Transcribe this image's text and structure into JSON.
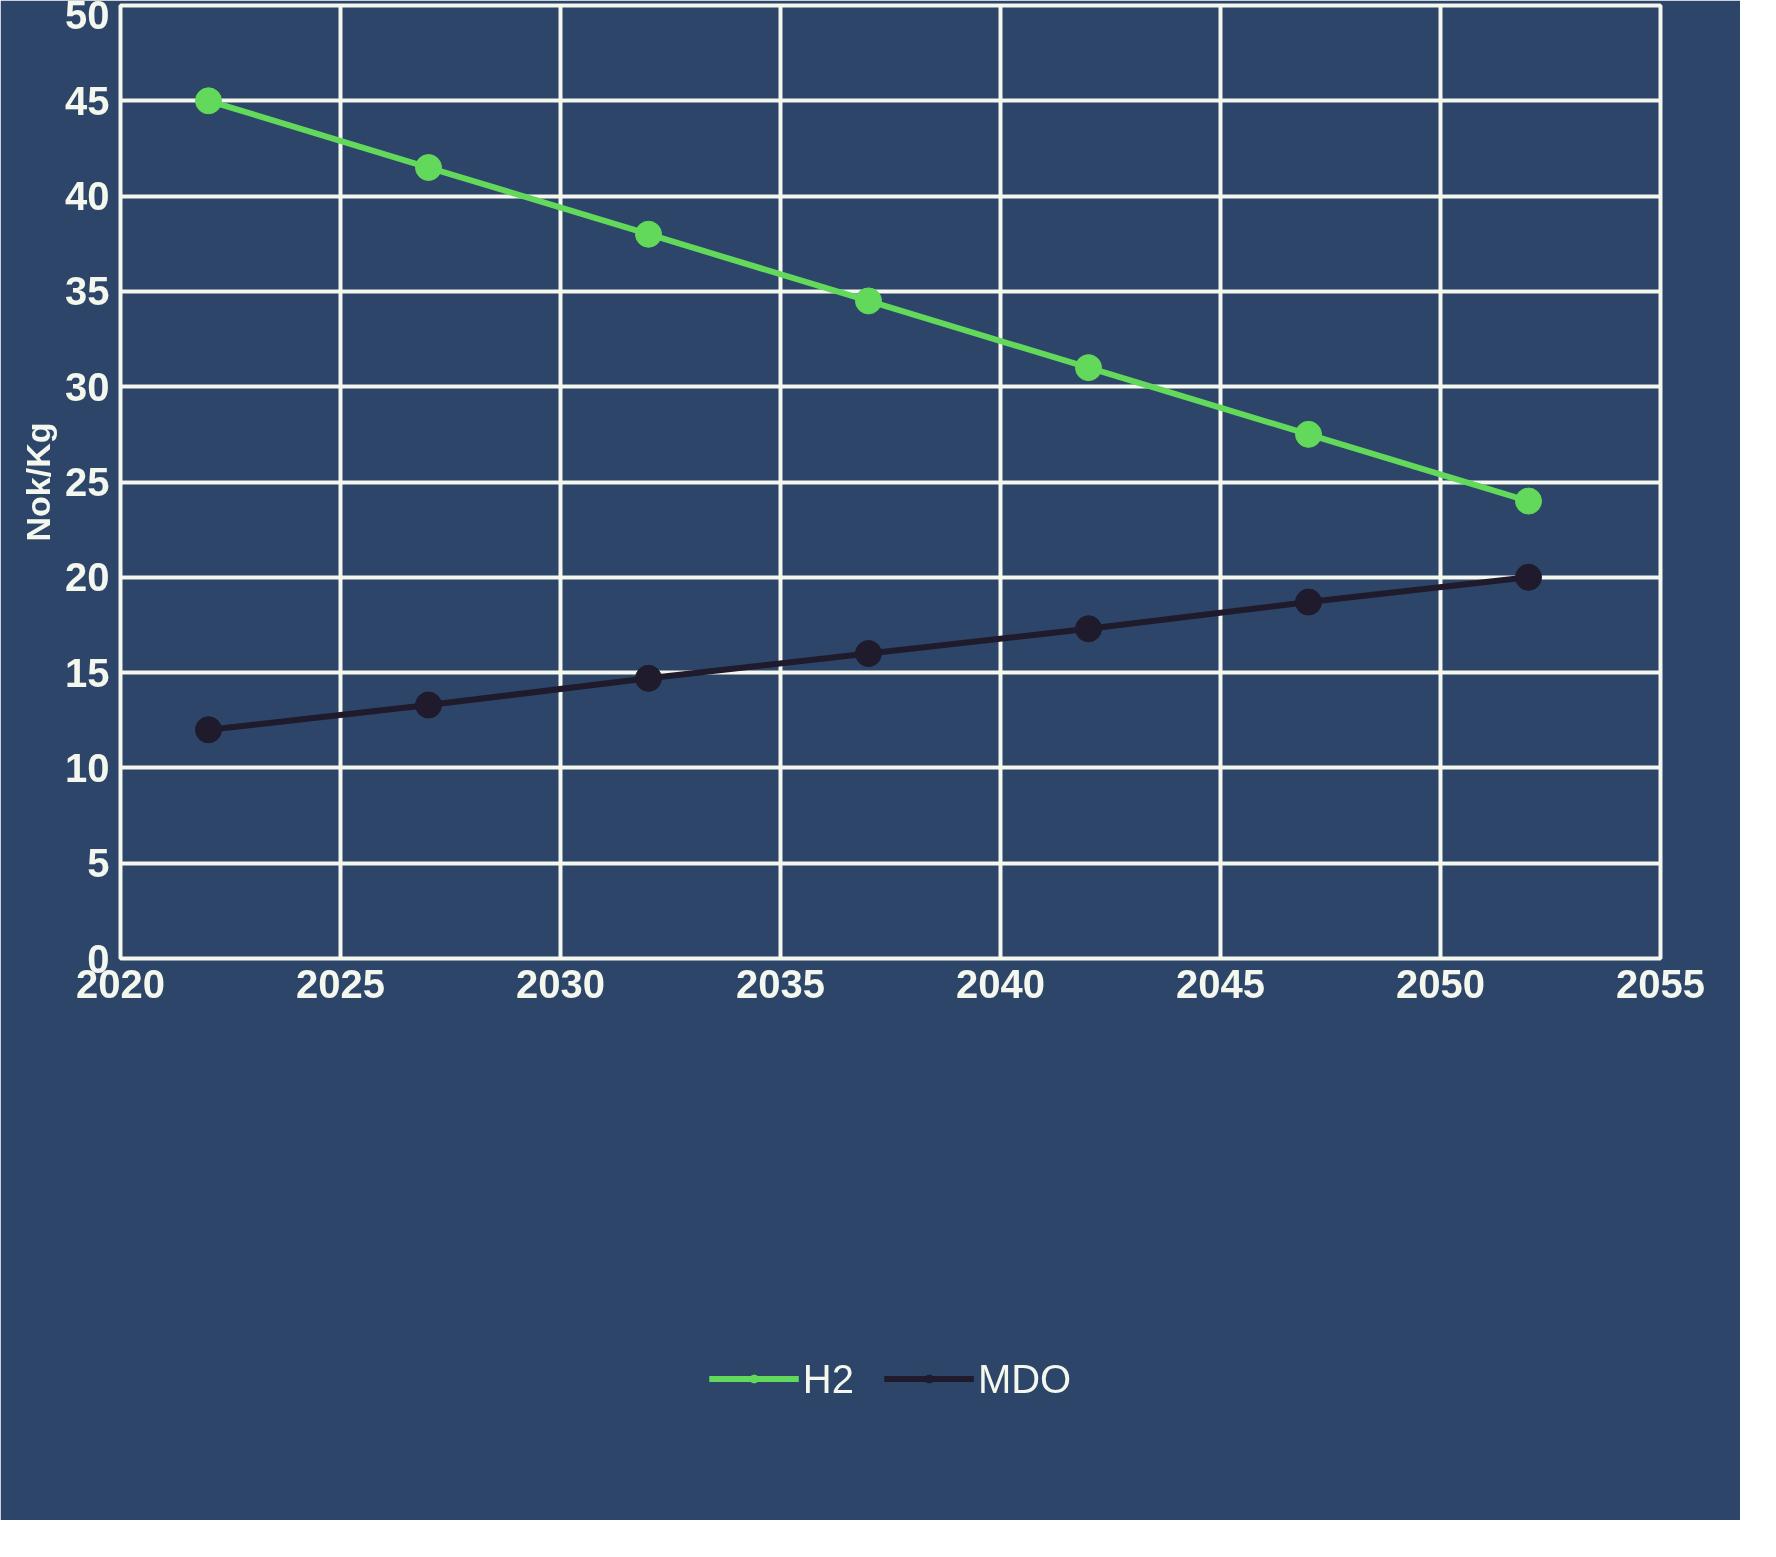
{
  "chart_data": {
    "type": "line",
    "ylabel": "Nok/Kg",
    "x": [
      2022,
      2027,
      2032,
      2037,
      2042,
      2047,
      2052
    ],
    "series": [
      {
        "name": "H2",
        "color": "#62d95a",
        "values": [
          45,
          41.5,
          38,
          34.5,
          31,
          27.5,
          24
        ]
      },
      {
        "name": "MDO",
        "color": "#1f1b2c",
        "values": [
          12,
          13.3,
          14.7,
          16,
          17.3,
          18.7,
          20
        ]
      }
    ],
    "xlim": [
      2020,
      2055
    ],
    "xticks": [
      2020,
      2025,
      2030,
      2035,
      2040,
      2045,
      2050,
      2055
    ],
    "ylim": [
      0,
      50
    ],
    "yticks": [
      0,
      5,
      10,
      15,
      20,
      25,
      30,
      35,
      40,
      45,
      50
    ],
    "grid": true,
    "legend": "bottom",
    "marker": "circle",
    "line_style": "solid"
  }
}
